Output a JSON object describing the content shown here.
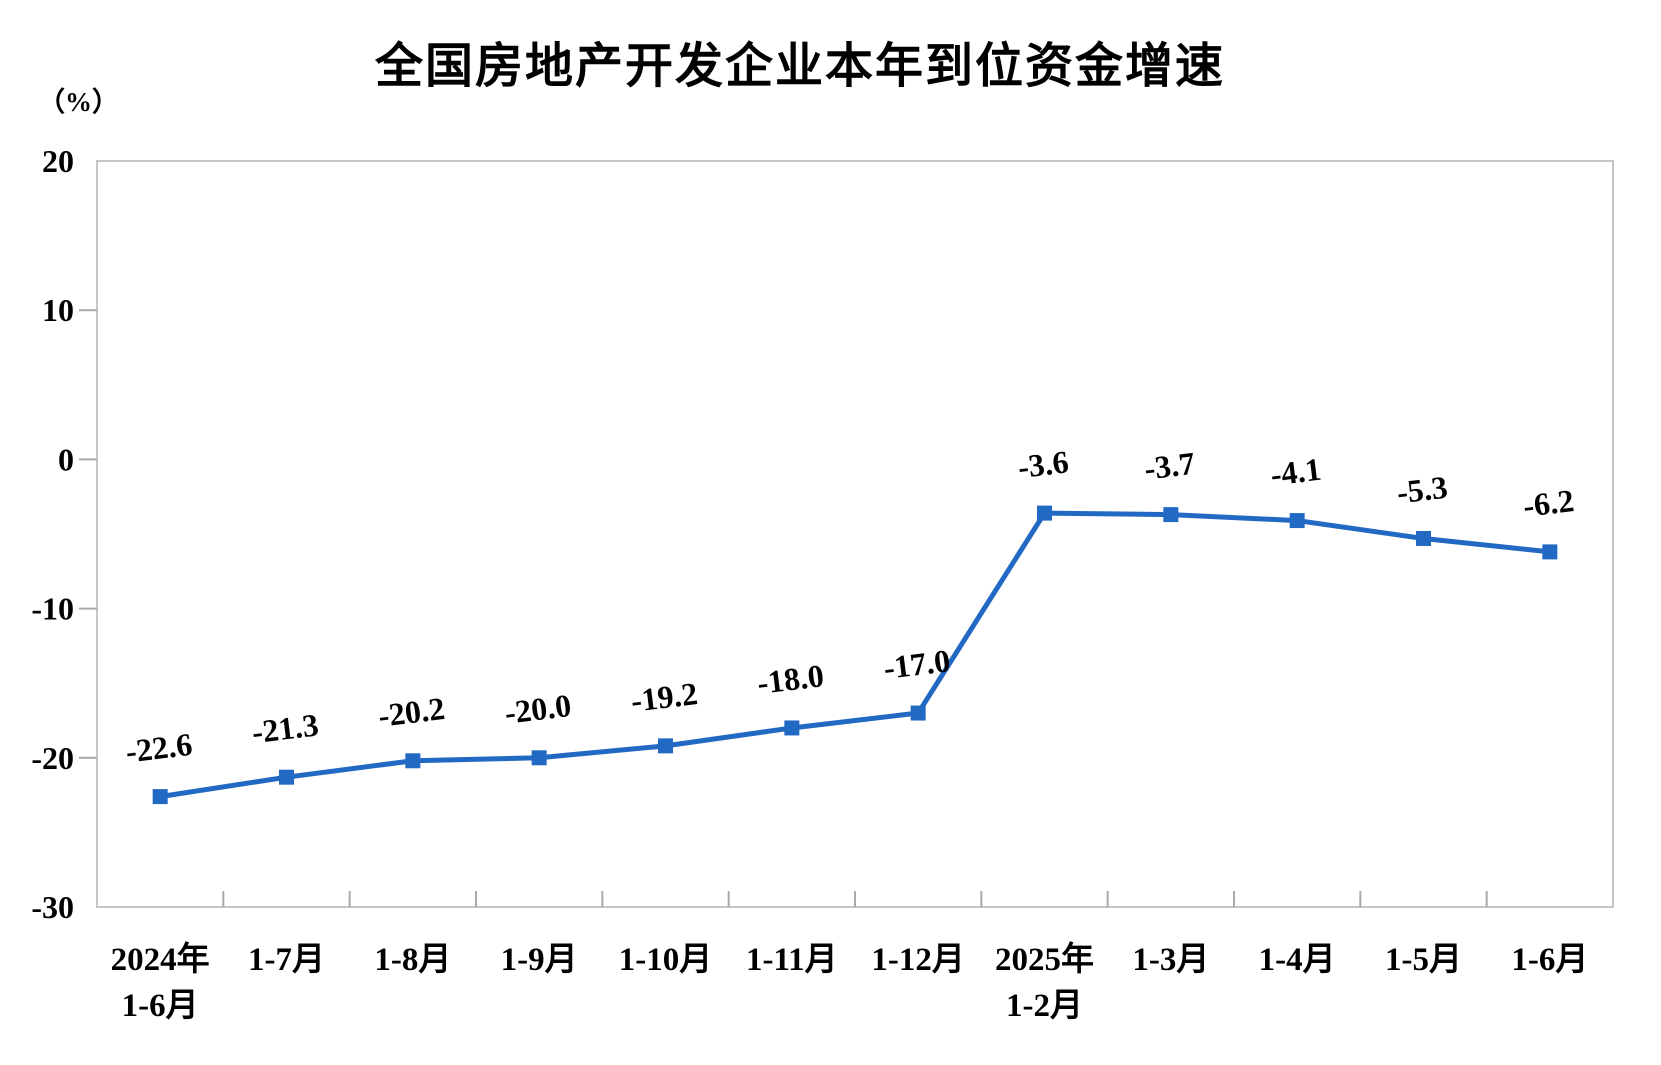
{
  "chart": {
    "title": "全国房地产开发企业本年到位资金增速",
    "unit_label": "（%）"
  },
  "chart_data": {
    "type": "line",
    "title": "全国房地产开发企业本年到位资金增速",
    "unit": "（%）",
    "categories": [
      "2024年1-6月",
      "1-7月",
      "1-8月",
      "1-9月",
      "1-10月",
      "1-11月",
      "1-12月",
      "2025年1-2月",
      "1-3月",
      "1-4月",
      "1-5月",
      "1-6月"
    ],
    "category_label_lines": [
      [
        "2024年",
        "1-6月"
      ],
      [
        "1-7月"
      ],
      [
        "1-8月"
      ],
      [
        "1-9月"
      ],
      [
        "1-10月"
      ],
      [
        "1-11月"
      ],
      [
        "1-12月"
      ],
      [
        "2025年",
        "1-2月"
      ],
      [
        "1-3月"
      ],
      [
        "1-4月"
      ],
      [
        "1-5月"
      ],
      [
        "1-6月"
      ]
    ],
    "values": [
      -22.6,
      -21.3,
      -20.2,
      -20.0,
      -19.2,
      -18.0,
      -17.0,
      -3.6,
      -3.7,
      -4.1,
      -5.3,
      -6.2
    ],
    "data_labels": [
      "-22.6",
      "-21.3",
      "-20.2",
      "-20.0",
      "-19.2",
      "-18.0",
      "-17.0",
      "-3.6",
      "-3.7",
      "-4.1",
      "-5.3",
      "-6.2"
    ],
    "y_ticks": [
      20,
      10,
      0,
      -10,
      -20,
      -30
    ],
    "ylim": [
      -30,
      20
    ],
    "xlabel": "",
    "ylabel": "（%）",
    "grid": false,
    "legend": "none",
    "marker": "square",
    "line_color": "#2269c4",
    "marker_color": "#2269c4",
    "label_color": "#000000"
  }
}
